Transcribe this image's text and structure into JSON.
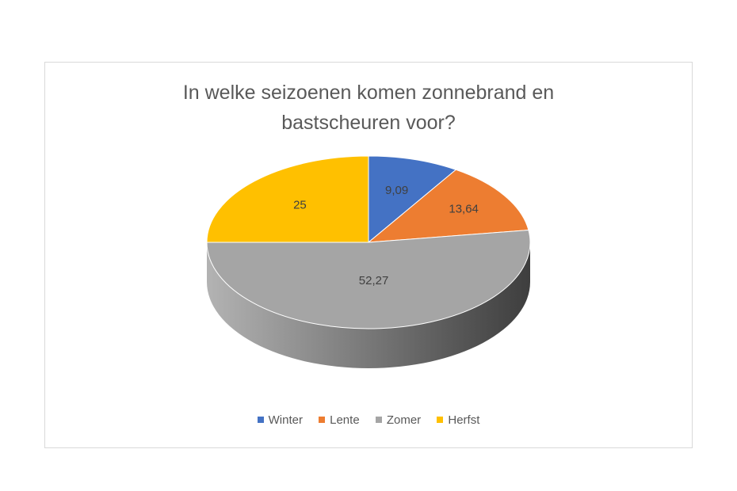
{
  "chart_data": {
    "type": "pie",
    "title": [
      "In welke seizoenen komen zonnebrand en",
      "bastscheuren voor?"
    ],
    "categories": [
      "Winter",
      "Lente",
      "Zomer",
      "Herfst"
    ],
    "values": [
      9.09,
      13.64,
      52.27,
      25
    ],
    "data_labels": [
      "9,09",
      "13,64",
      "52,27",
      "25"
    ],
    "colors": [
      "#4472c4",
      "#ed7d31",
      "#a5a5a5",
      "#ffc000"
    ],
    "legend_position": "bottom",
    "three_d": true
  }
}
